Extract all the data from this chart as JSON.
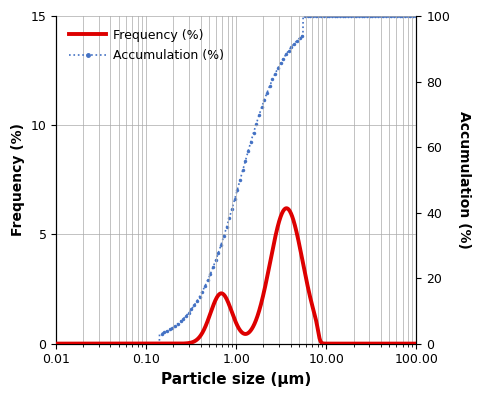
{
  "xlabel": "Particle size (μm)",
  "ylabel_left": "Frequency (%)",
  "ylabel_right": "Accumulation (%)",
  "xlim": [
    0.01,
    100.0
  ],
  "ylim_left": [
    0,
    15
  ],
  "ylim_right": [
    0,
    100
  ],
  "yticks_left": [
    0,
    5,
    10,
    15
  ],
  "yticks_right": [
    0,
    20,
    40,
    60,
    80,
    100
  ],
  "freq_color": "#dd0000",
  "accum_color": "#4472c4",
  "freq_linewidth": 2.8,
  "accum_linewidth": 0.0,
  "grid_color": "#aaaaaa",
  "background_color": "#ffffff",
  "legend_freq": "Frequency (%)",
  "legend_accum": "Accumulation (%)"
}
